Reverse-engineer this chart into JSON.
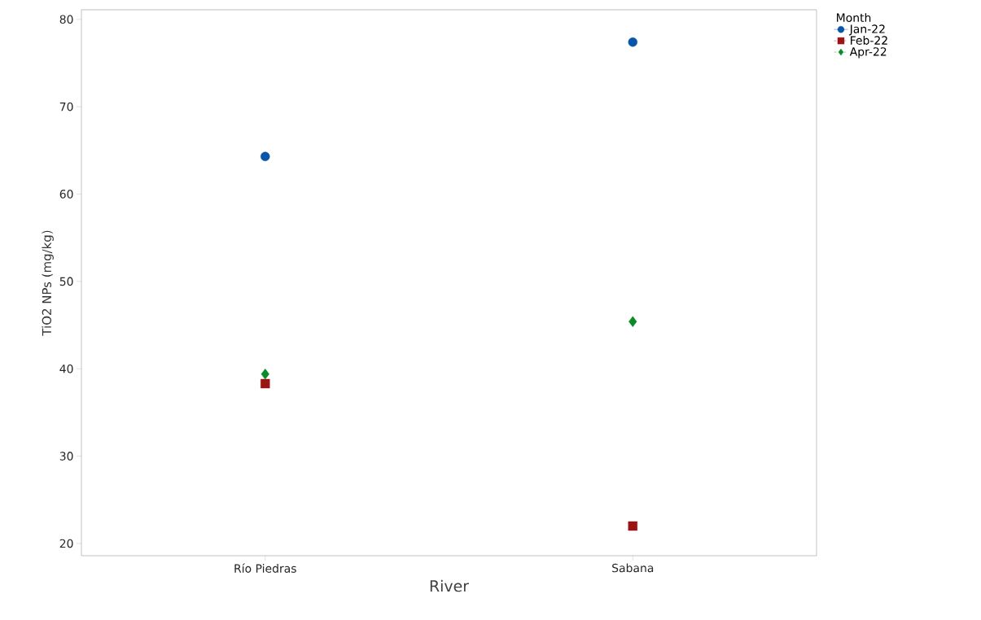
{
  "chart_data": {
    "type": "scatter",
    "xlabel": "River",
    "ylabel": "TiO2 NPs (mg/kg)",
    "legend_title": "Month",
    "legend": "top right",
    "categories": [
      "Río Piedras",
      "Sabana"
    ],
    "ylim": [
      18.6,
      81.1
    ],
    "yticks": [
      20,
      30,
      40,
      50,
      60,
      70,
      80
    ],
    "series": [
      {
        "name": "Jan-22",
        "color": "#0b55a8",
        "marker": "circle",
        "line_style": "solid",
        "values": [
          64.3,
          77.4
        ]
      },
      {
        "name": "Feb-22",
        "color": "#9b1414",
        "marker": "square",
        "line_style": "dashed",
        "values": [
          38.3,
          22.0
        ]
      },
      {
        "name": "Apr-22",
        "color": "#0a8a2a",
        "marker": "diamond",
        "line_style": "dashed",
        "values": [
          39.4,
          45.4
        ]
      }
    ]
  }
}
